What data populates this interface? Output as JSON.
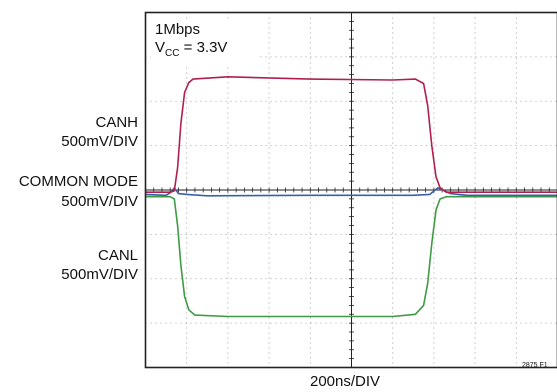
{
  "chart_data": {
    "type": "line",
    "title": "",
    "annotation": {
      "line1": "1Mbps",
      "vcc_symbol": "V",
      "vcc_sub": "CC",
      "vcc_value": " = 3.3V"
    },
    "channel_labels": [
      {
        "name": "CANH",
        "scale": "500mV/DIV"
      },
      {
        "name": "COMMON MODE",
        "scale": "500mV/DIV"
      },
      {
        "name": "CANL",
        "scale": "500mV/DIV"
      }
    ],
    "xlabel": "200ns/DIV",
    "figure_id": "2875 F1",
    "grid": {
      "on": true,
      "x_divisions": 10,
      "y_divisions": 8
    },
    "xlim_div": [
      0,
      10
    ],
    "ylim_div": [
      -4,
      4
    ],
    "series": [
      {
        "name": "CANH",
        "color": "#b0204e",
        "x_div": [
          0,
          0.6,
          0.7,
          0.78,
          0.86,
          0.95,
          1.05,
          1.15,
          2.0,
          4.0,
          6.0,
          6.55,
          6.75,
          6.85,
          6.95,
          7.05,
          7.15,
          7.3,
          7.5,
          10
        ],
        "y_div": [
          -0.05,
          -0.05,
          -0.02,
          0.5,
          1.5,
          2.2,
          2.42,
          2.5,
          2.55,
          2.5,
          2.48,
          2.5,
          2.4,
          1.9,
          1.0,
          0.3,
          0.05,
          -0.05,
          -0.05,
          -0.05
        ]
      },
      {
        "name": "COMMON MODE",
        "color": "#3a5fa8",
        "x_div": [
          0,
          0.5,
          0.62,
          0.7,
          0.8,
          1.0,
          1.5,
          4.0,
          6.5,
          6.9,
          7.1,
          7.4,
          7.8,
          10
        ],
        "y_div": [
          -0.1,
          -0.12,
          -0.05,
          0.05,
          -0.08,
          -0.1,
          -0.13,
          -0.12,
          -0.12,
          -0.1,
          0.05,
          -0.08,
          -0.12,
          -0.12
        ]
      },
      {
        "name": "CANL",
        "color": "#3f9a45",
        "x_div": [
          0,
          0.6,
          0.7,
          0.78,
          0.86,
          0.95,
          1.05,
          1.2,
          2.0,
          4.0,
          6.0,
          6.55,
          6.75,
          6.85,
          6.95,
          7.05,
          7.15,
          7.3,
          7.5,
          10
        ],
        "y_div": [
          -0.15,
          -0.15,
          -0.2,
          -0.8,
          -1.7,
          -2.4,
          -2.7,
          -2.82,
          -2.85,
          -2.85,
          -2.85,
          -2.8,
          -2.6,
          -2.1,
          -1.2,
          -0.45,
          -0.2,
          -0.15,
          -0.15,
          -0.15
        ]
      }
    ]
  }
}
